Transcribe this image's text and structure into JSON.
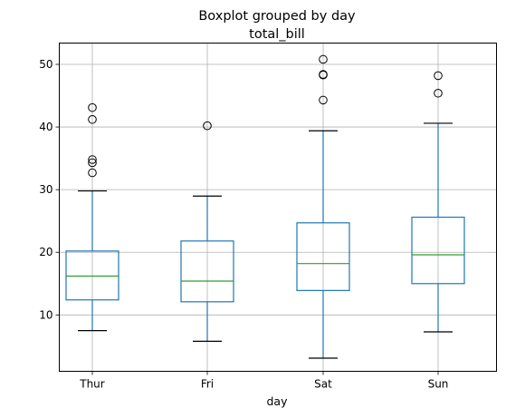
{
  "chart_data": {
    "type": "boxplot",
    "title": "Boxplot grouped by day",
    "subtitle": "total_bill",
    "xlabel": "day",
    "ylabel": "",
    "categories": [
      "Thur",
      "Fri",
      "Sat",
      "Sun"
    ],
    "ylim": [
      1,
      53.4
    ],
    "yticks": [
      10,
      20,
      30,
      40,
      50
    ],
    "grid": true,
    "colors": {
      "box": "#1f77b4",
      "median": "#2ca02c",
      "caps": "#000000",
      "grid": "#b0b0b0",
      "outlier": "#000000"
    },
    "boxes": [
      {
        "category": "Thur",
        "whisker_low": 7.5,
        "q1": 12.4,
        "median": 16.2,
        "q3": 20.2,
        "whisker_high": 29.8,
        "outliers": [
          32.7,
          34.3,
          34.8,
          41.2,
          43.1
        ]
      },
      {
        "category": "Fri",
        "whisker_low": 5.8,
        "q1": 12.1,
        "median": 15.4,
        "q3": 21.8,
        "whisker_high": 28.97,
        "outliers": [
          40.2
        ]
      },
      {
        "category": "Sat",
        "whisker_low": 3.1,
        "q1": 13.9,
        "median": 18.2,
        "q3": 24.7,
        "whisker_high": 39.4,
        "outliers": [
          44.3,
          48.3,
          48.4,
          50.8
        ]
      },
      {
        "category": "Sun",
        "whisker_low": 7.3,
        "q1": 15.0,
        "median": 19.6,
        "q3": 25.6,
        "whisker_high": 40.6,
        "outliers": [
          45.4,
          48.2
        ]
      }
    ]
  }
}
